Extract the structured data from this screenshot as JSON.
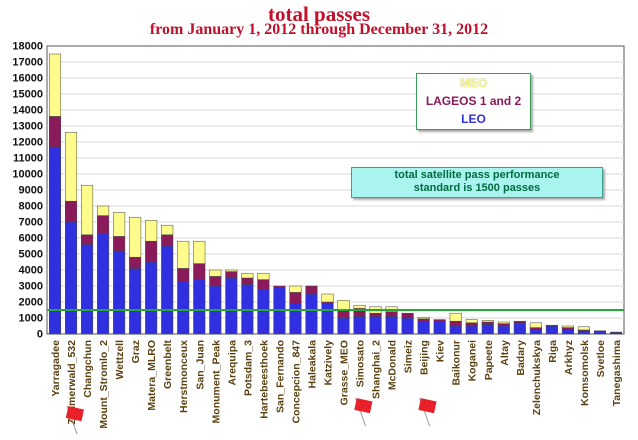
{
  "chart_data": {
    "type": "bar",
    "stacked": true,
    "title": "total passes",
    "subtitle": "from January 1, 2012 through December 31, 2012",
    "ylim": [
      0,
      18000
    ],
    "yticks": [
      0,
      1000,
      2000,
      3000,
      4000,
      5000,
      6000,
      7000,
      8000,
      9000,
      10000,
      11000,
      12000,
      13000,
      14000,
      15000,
      16000,
      17000,
      18000
    ],
    "categories": [
      "Yarragadee",
      "Zimmerwald_532",
      "Changchun",
      "Mount_Stromlo_2",
      "Wettzell",
      "Graz",
      "Matera_MLRO",
      "Greenbelt",
      "Herstmonceux",
      "San_Juan",
      "Monument_Peak",
      "Arequipa",
      "Potsdam_3",
      "Hartebeesthoek",
      "San_Fernando",
      "Concepcion_847",
      "Haleakala",
      "Katzively",
      "Grasse_MEO",
      "Simosato",
      "Shanghai_2",
      "McDonald",
      "Simeiz",
      "Beijing",
      "Kiev",
      "Baikonur",
      "Koganei",
      "Papeete",
      "Altay",
      "Badary",
      "Zelenchukskya",
      "Riga",
      "Arkhyz",
      "Komsomolsk",
      "Svetloe",
      "Tanegashima"
    ],
    "series": [
      {
        "name": "LEO",
        "color": "#3030e0",
        "values": [
          11700,
          7000,
          5600,
          6300,
          5200,
          4100,
          4500,
          5500,
          3300,
          3400,
          3000,
          3500,
          3100,
          2800,
          2900,
          1900,
          2500,
          1900,
          1000,
          1100,
          1100,
          1100,
          1000,
          800,
          800,
          500,
          500,
          600,
          500,
          700,
          300,
          500,
          300,
          200,
          150,
          100
        ]
      },
      {
        "name": "LAGEOS 1 and 2",
        "color": "#8a1a5a",
        "values": [
          1900,
          1300,
          600,
          1100,
          900,
          700,
          1300,
          700,
          800,
          1000,
          600,
          400,
          400,
          600,
          100,
          700,
          500,
          100,
          500,
          500,
          200,
          300,
          300,
          150,
          100,
          300,
          200,
          150,
          150,
          100,
          100,
          50,
          100,
          50,
          50,
          20
        ]
      },
      {
        "name": "MEO",
        "color": "#fdfb8c",
        "values": [
          3900,
          4300,
          3100,
          600,
          1500,
          2500,
          1300,
          600,
          1700,
          1400,
          400,
          100,
          300,
          400,
          0,
          400,
          0,
          500,
          600,
          200,
          400,
          300,
          0,
          100,
          0,
          500,
          200,
          100,
          100,
          0,
          300,
          0,
          100,
          200,
          0,
          0
        ]
      }
    ],
    "reference_line": {
      "value": 1500,
      "color": "#22aa33"
    },
    "note": [
      "total satellite pass performance",
      "standard is 1500 passes"
    ]
  }
}
